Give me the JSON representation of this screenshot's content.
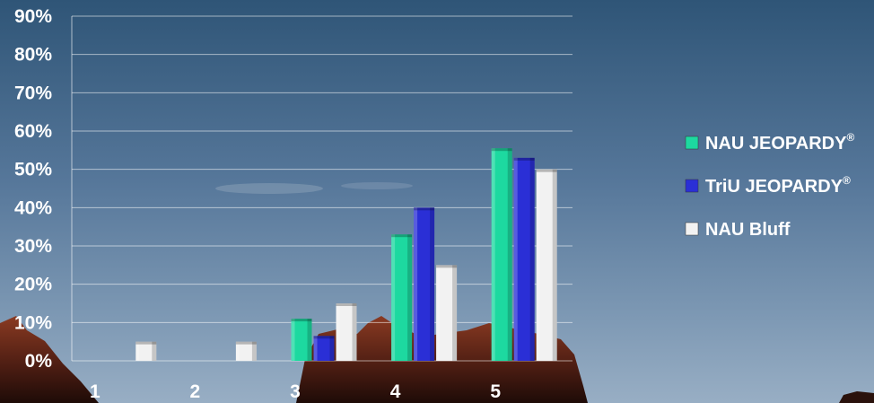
{
  "chart_data": {
    "type": "bar",
    "categories": [
      "1",
      "2",
      "3",
      "4",
      "5"
    ],
    "series": [
      {
        "name": "NAU JEOPARDY",
        "mark": "®",
        "color": "#1dd9a0",
        "values": [
          0,
          0,
          11,
          33,
          55.5
        ]
      },
      {
        "name": "TriU JEOPARDY",
        "mark": "®",
        "color": "#2a2fd6",
        "values": [
          0,
          0,
          6.5,
          40,
          53
        ]
      },
      {
        "name": "NAU Bluff",
        "mark": "",
        "color": "#f2f2f2",
        "values": [
          5,
          5,
          15,
          25,
          50
        ]
      }
    ],
    "ylim": [
      0,
      90
    ],
    "yticks": [
      "0%",
      "10%",
      "20%",
      "30%",
      "40%",
      "50%",
      "60%",
      "70%",
      "80%",
      "90%"
    ],
    "grid": true,
    "legend_position": "right"
  }
}
